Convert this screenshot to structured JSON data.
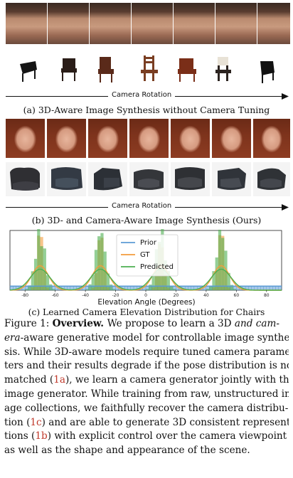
{
  "panel_a": {
    "arrow_label": "Camera Rotation",
    "caption": "(a) 3D-Aware Image Synthesis without Camera Tuning"
  },
  "panel_b": {
    "arrow_label": "Camera Rotation",
    "caption": "(b) 3D- and Camera-Aware Image Synthesis (Ours)"
  },
  "panel_c": {
    "caption": "(c) Learned Camera Elevation Distribution for Chairs"
  },
  "colors": {
    "prior": "#5b9bd5",
    "gt": "#f39c3c",
    "predicted": "#4caf50"
  },
  "chart_data": {
    "type": "bar",
    "xlabel": "Elevation Angle (Degrees)",
    "ylabel": "",
    "x_ticks": [
      "-80",
      "-60",
      "-40",
      "-20",
      "0",
      "20",
      "40",
      "60",
      "80"
    ],
    "xlim": [
      -90,
      90
    ],
    "ylim": [
      0,
      1
    ],
    "legend_position": "top-center",
    "series": [
      {
        "name": "Prior",
        "description": "uniform",
        "level": 0.07,
        "range": [
          -90,
          90
        ]
      },
      {
        "name": "GT",
        "peaks": [
          -70,
          -30,
          10,
          50
        ],
        "level": 0.93
      },
      {
        "name": "Predicted",
        "peaks": [
          -70,
          -30,
          10,
          50
        ],
        "level": 0.97
      }
    ]
  },
  "figure_text": {
    "label": "Figure 1:",
    "title": "Overview.",
    "lines": [
      [
        "We propose to learn a 3D ",
        "and cam-"
      ],
      [
        "era",
        "-aware generative model for controllable image synthe-"
      ],
      [
        "sis. While 3D-aware models require tuned camera parame-"
      ],
      [
        "ters and their results degrade if the pose distribution is not"
      ],
      [
        "matched (",
        "1a",
        "), we learn a camera generator jointly with the"
      ],
      [
        "image generator. While training from raw, unstructured im-"
      ],
      [
        "age collections, we faithfully recover the camera distribu-"
      ],
      [
        "tion (",
        "1c",
        ") and are able to generate 3D consistent representa-"
      ],
      [
        "tions (",
        "1b",
        ") with explicit control over the camera viewpoint"
      ],
      [
        "as well as the shape and appearance of the scene."
      ]
    ]
  }
}
